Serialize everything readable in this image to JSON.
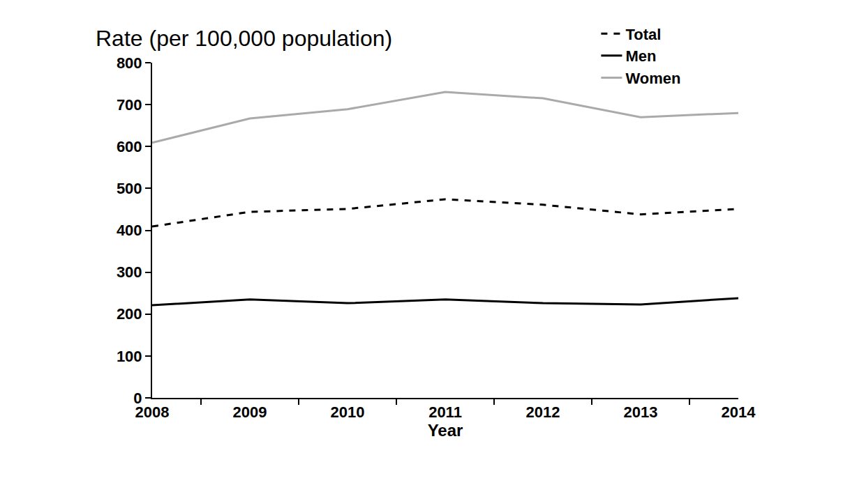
{
  "chart_data": {
    "type": "line",
    "ylabel": "Rate (per 100,000 population)",
    "xlabel": "Year",
    "categories": [
      "2008",
      "2009",
      "2010",
      "2011",
      "2012",
      "2013",
      "2014"
    ],
    "series": [
      {
        "name": "Total",
        "color": "#000000",
        "line_style": "dash",
        "values": [
          409,
          444,
          451,
          474,
          461,
          438,
          451
        ]
      },
      {
        "name": "Men",
        "color": "#000000",
        "line_style": "solid",
        "values": [
          221,
          235,
          226,
          235,
          226,
          223,
          238
        ]
      },
      {
        "name": "Women",
        "color": "#aaaaaa",
        "line_style": "solid",
        "values": [
          609,
          667,
          689,
          730,
          715,
          670,
          680
        ]
      }
    ],
    "ylim": [
      0,
      800
    ],
    "yticks": [
      0,
      100,
      200,
      300,
      400,
      500,
      600,
      700,
      800
    ],
    "grid": false,
    "legend": "top right"
  }
}
